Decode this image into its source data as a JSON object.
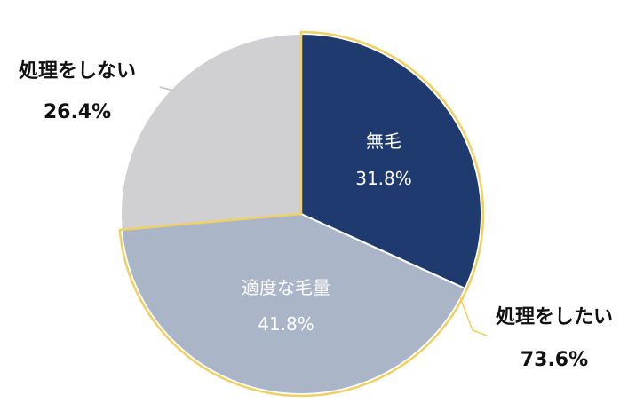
{
  "chart_data": {
    "type": "pie",
    "slices": [
      {
        "label": "無毛",
        "value": 31.8,
        "value_label": "31.8%",
        "color": "#1f3a6e"
      },
      {
        "label": "適度な毛量",
        "value": 41.8,
        "value_label": "41.8%",
        "color": "#abb5c8"
      },
      {
        "label": "処理をしない",
        "value": 26.4,
        "value_label": "26.4%",
        "color": "#d0cfd2"
      }
    ],
    "group": {
      "label": "処理をしたい",
      "value_label": "73.6%",
      "outline_color": "#f0d060",
      "members": [
        "無毛",
        "適度な毛量"
      ]
    },
    "start_angle_deg": 0,
    "direction": "clockwise"
  }
}
